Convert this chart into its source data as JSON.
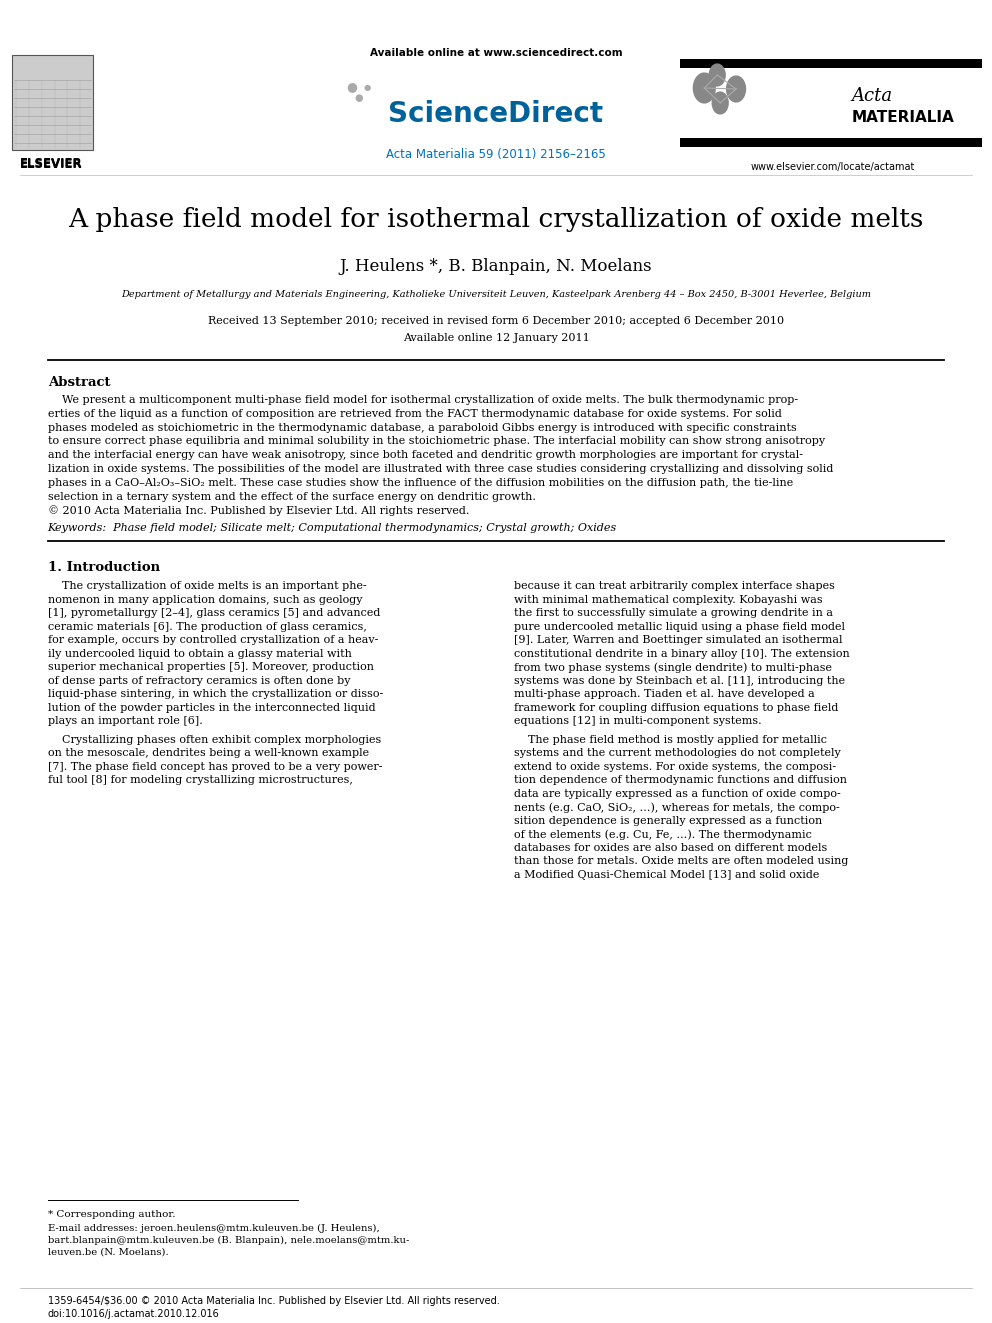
{
  "title": "A phase field model for isothermal crystallization of oxide melts",
  "authors": "J. Heulens *, B. Blanpain, N. Moelans",
  "affiliation": "Department of Metallurgy and Materials Engineering, Katholieke Universiteit Leuven, Kasteelpark Arenberg 44 – Box 2450, B-3001 Heverlee, Belgium",
  "received": "Received 13 September 2010; received in revised form 6 December 2010; accepted 6 December 2010",
  "available": "Available online 12 January 2011",
  "journal_ref": "Acta Materialia 59 (2011) 2156–2165",
  "available_online": "Available online at www.sciencedirect.com",
  "elsevier_url": "www.elsevier.com/locate/actamat",
  "abstract_title": "Abstract",
  "keywords_label": "Keywords:",
  "keywords": "Phase field model; Silicate melt; Computational thermodynamics; Crystal growth; Oxides",
  "section1_title": "1. Introduction",
  "footnote_star": "* Corresponding author.",
  "bottom_line1": "1359-6454/$36.00 © 2010 Acta Materialia Inc. Published by Elsevier Ltd. All rights reserved.",
  "bottom_line2": "doi:10.1016/j.actamat.2010.12.016",
  "bg_color": "#ffffff",
  "text_color": "#000000",
  "header_blue": "#0070c0",
  "sciencedirect_blue": "#00629B",
  "abstract_lines": [
    "    We present a multicomponent multi-phase field model for isothermal crystallization of oxide melts. The bulk thermodynamic prop-",
    "erties of the liquid as a function of composition are retrieved from the FACT thermodynamic database for oxide systems. For solid",
    "phases modeled as stoichiometric in the thermodynamic database, a paraboloid Gibbs energy is introduced with specific constraints",
    "to ensure correct phase equilibria and minimal solubility in the stoichiometric phase. The interfacial mobility can show strong anisotropy",
    "and the interfacial energy can have weak anisotropy, since both faceted and dendritic growth morphologies are important for crystal-",
    "lization in oxide systems. The possibilities of the model are illustrated with three case studies considering crystallizing and dissolving solid",
    "phases in a CaO–Al₂O₃–SiO₂ melt. These case studies show the influence of the diffusion mobilities on the diffusion path, the tie-line",
    "selection in a ternary system and the effect of the surface energy on dendritic growth.",
    "© 2010 Acta Materialia Inc. Published by Elsevier Ltd. All rights reserved."
  ],
  "intro_col1_lines": [
    "    The crystallization of oxide melts is an important phe-",
    "nomenon in many application domains, such as geology",
    "[1], pyrometallurgy [2–4], glass ceramics [5] and advanced",
    "ceramic materials [6]. The production of glass ceramics,",
    "for example, occurs by controlled crystallization of a heav-",
    "ily undercooled liquid to obtain a glassy material with",
    "superior mechanical properties [5]. Moreover, production",
    "of dense parts of refractory ceramics is often done by",
    "liquid-phase sintering, in which the crystallization or disso-",
    "lution of the powder particles in the interconnected liquid",
    "plays an important role [6].",
    "",
    "    Crystallizing phases often exhibit complex morphologies",
    "on the mesoscale, dendrites being a well-known example",
    "[7]. The phase field concept has proved to be a very power-",
    "ful tool [8] for modeling crystallizing microstructures,"
  ],
  "intro_col2_lines": [
    "because it can treat arbitrarily complex interface shapes",
    "with minimal mathematical complexity. Kobayashi was",
    "the first to successfully simulate a growing dendrite in a",
    "pure undercooled metallic liquid using a phase field model",
    "[9]. Later, Warren and Boettinger simulated an isothermal",
    "constitutional dendrite in a binary alloy [10]. The extension",
    "from two phase systems (single dendrite) to multi-phase",
    "systems was done by Steinbach et al. [11], introducing the",
    "multi-phase approach. Tiaden et al. have developed a",
    "framework for coupling diffusion equations to phase field",
    "equations [12] in multi-component systems.",
    "",
    "    The phase field method is mostly applied for metallic",
    "systems and the current methodologies do not completely",
    "extend to oxide systems. For oxide systems, the composi-",
    "tion dependence of thermodynamic functions and diffusion",
    "data are typically expressed as a function of oxide compo-",
    "nents (e.g. CaO, SiO₂, …), whereas for metals, the compo-",
    "sition dependence is generally expressed as a function",
    "of the elements (e.g. Cu, Fe, …). The thermodynamic",
    "databases for oxides are also based on different models",
    "than those for metals. Oxide melts are often modeled using",
    "a Modified Quasi-Chemical Model [13] and solid oxide"
  ],
  "footnote_email_lines": [
    "E-mail addresses: jeroen.heulens@mtm.kuleuven.be (J. Heulens),",
    "bart.blanpain@mtm.kuleuven.be (B. Blanpain), nele.moelans@mtm.ku-",
    "leuven.be (N. Moelans)."
  ]
}
